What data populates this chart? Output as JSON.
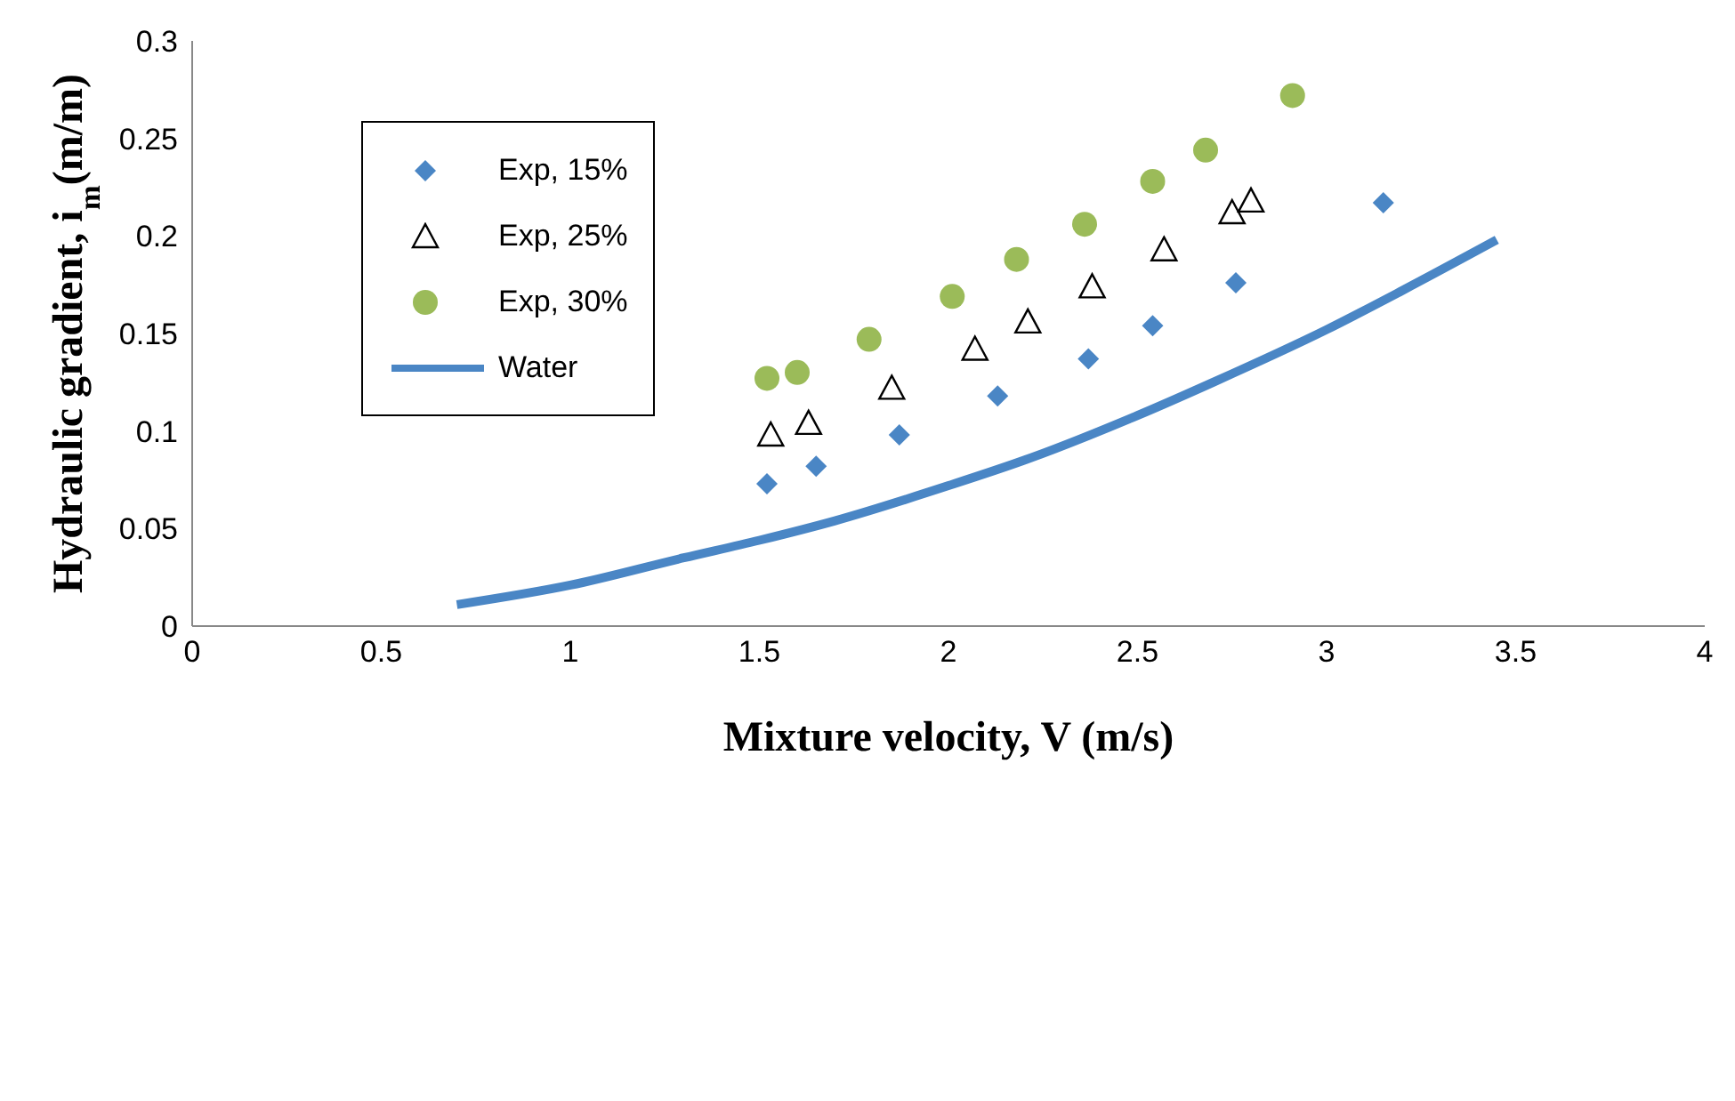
{
  "chart_data": {
    "type": "scatter",
    "xlabel": "Mixture velocity, V (m/s)",
    "ylabel": "Hydraulic gradient, i$_{m}$(m/m)",
    "xlim": [
      0,
      4
    ],
    "xticks": [
      0,
      0.5,
      1,
      1.5,
      2,
      2.5,
      3,
      3.5,
      4
    ],
    "ylim": [
      0,
      0.3
    ],
    "yticks": [
      0,
      0.05,
      0.1,
      0.15,
      0.2,
      0.25,
      0.3
    ],
    "grid": false,
    "legend": "top left",
    "series": [
      {
        "name": "Exp, 15%",
        "color": "#4a86c5",
        "marker": "diamond",
        "x": [
          1.52,
          1.65,
          1.87,
          2.13,
          2.37,
          2.54,
          2.76,
          3.15
        ],
        "values": [
          0.073,
          0.082,
          0.098,
          0.118,
          0.137,
          0.154,
          0.176,
          0.217
        ]
      },
      {
        "name": "Exp, 25%",
        "color": "#000000",
        "marker": "triangle",
        "x": [
          1.53,
          1.63,
          1.85,
          2.07,
          2.21,
          2.38,
          2.57,
          2.75,
          2.8
        ],
        "values": [
          0.098,
          0.104,
          0.122,
          0.142,
          0.156,
          0.174,
          0.193,
          0.212,
          0.218
        ]
      },
      {
        "name": "Exp, 30%",
        "color": "#9bbb59",
        "marker": "circle",
        "x": [
          1.52,
          1.6,
          1.79,
          2.01,
          2.18,
          2.36,
          2.54,
          2.68,
          2.91
        ],
        "values": [
          0.127,
          0.13,
          0.147,
          0.169,
          0.188,
          0.206,
          0.228,
          0.244,
          0.272
        ]
      },
      {
        "name": "Water",
        "type": "line",
        "color": "#4a86c5",
        "marker": "none",
        "x": [
          0.7,
          1.0,
          1.3,
          1.5,
          1.7,
          2.0,
          2.2,
          2.5,
          2.7,
          3.0,
          3.2,
          3.45
        ],
        "values": [
          0.011,
          0.021,
          0.035,
          0.044,
          0.054,
          0.072,
          0.085,
          0.108,
          0.125,
          0.152,
          0.172,
          0.198
        ]
      }
    ]
  }
}
